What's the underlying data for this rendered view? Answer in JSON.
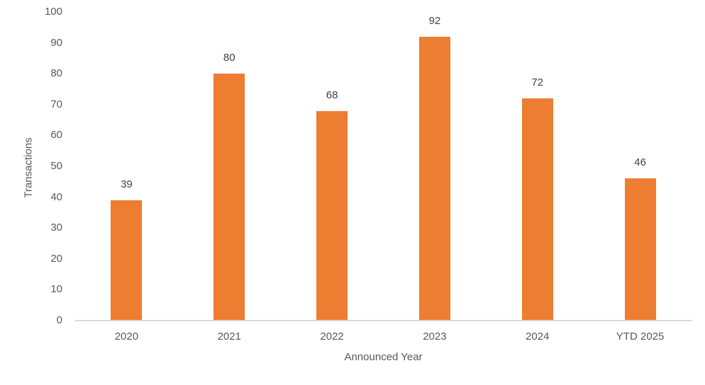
{
  "chart_data": {
    "type": "bar",
    "categories": [
      "2020",
      "2021",
      "2022",
      "2023",
      "2024",
      "YTD 2025"
    ],
    "values": [
      39,
      80,
      68,
      92,
      72,
      46
    ],
    "title": "",
    "xlabel": "Announced Year",
    "ylabel": "Transactions",
    "ylim": [
      0,
      100
    ],
    "yticks": [
      0,
      10,
      20,
      30,
      40,
      50,
      60,
      70,
      80,
      90,
      100
    ],
    "grid": false,
    "legend": "none",
    "data_labels": true,
    "colors": {
      "bar": "#ED7D31",
      "axis_line": "#D9D9D9",
      "tick_label": "#595959",
      "data_label": "#404040",
      "background": "#FFFFFF"
    }
  }
}
